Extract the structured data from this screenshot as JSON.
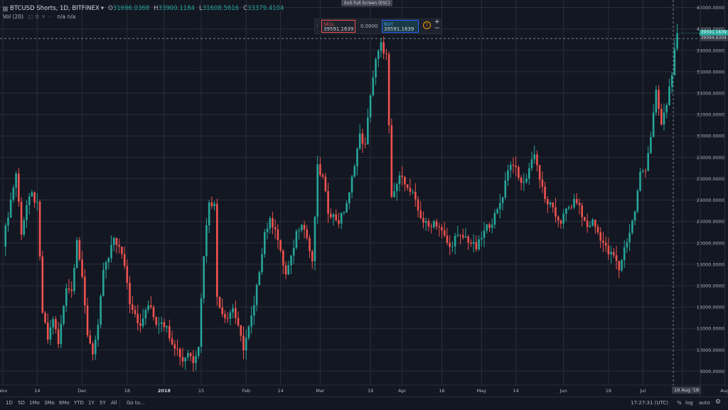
{
  "header": {
    "symbol": "BTCUSD Shorts, 1D, BITFINEX",
    "dropdown": "▾",
    "o_label": "O",
    "o_value": "31696.0368",
    "h_label": "H",
    "h_value": "33900.1184",
    "l_label": "L",
    "l_value": "31608.5616",
    "c_label": "C",
    "c_value": "33379.4104",
    "vol_label": "Vol (20)",
    "vol_values": "n/a  n/a"
  },
  "exit_fullscreen": "Exit Full Screen (ESC)",
  "trade_panel": {
    "sell_label": "SELL",
    "sell_price": "39591.1639",
    "spread": "0.0000",
    "buy_label": "BUY",
    "buy_price": "39591.1639",
    "info_icon": "!",
    "plus": "+",
    "minus": "−"
  },
  "price_tags": {
    "last": "39591.1639",
    "crosshair": "39094.6304"
  },
  "crosshair_date": "19 Aug '18",
  "bottom_bar": {
    "ranges": [
      "1D",
      "5D",
      "1Mo",
      "3Mo",
      "6Mo",
      "YTD",
      "1Y",
      "5Y",
      "All"
    ],
    "goto": "Go to...",
    "time": "17:27:31 (UTC)",
    "percent": "%",
    "log": "log",
    "auto": "auto"
  },
  "colors": {
    "up": "#26a69a",
    "down": "#ef5350",
    "background": "#131722",
    "grid": "#2a2e39",
    "text": "#b2b5be"
  },
  "chart_data": {
    "type": "candlestick",
    "title": "BTCUSD Shorts, 1D, BITFINEX",
    "ylim": [
      6700,
      42700
    ],
    "y_ticks": [
      8000,
      10000,
      12000,
      14000,
      16000,
      18000,
      20000,
      22000,
      24000,
      26000,
      28000,
      30000,
      32000,
      34000,
      36000,
      38000,
      40000,
      42000
    ],
    "y_tick_labels": [
      "8000.0000",
      "10000.0000",
      "12000.0000",
      "14000.0000",
      "16000.0000",
      "18000.0000",
      "20000.0000",
      "22000.0000",
      "24000.0000",
      "26000.0000",
      "28000.0000",
      "30000.0000",
      "32000.0000",
      "34000.0000",
      "36000.0000",
      "38000.0000",
      "40000.0000",
      "42000.0000"
    ],
    "x_tick_labels": [
      "Nov",
      "14",
      "Dec",
      "18",
      "2018",
      "15",
      "Feb",
      "14",
      "Mar",
      "19",
      "Apr",
      "16",
      "May",
      "14",
      "Jun",
      "18",
      "Jul",
      "16",
      "Aug"
    ],
    "x_tick_days": [
      0,
      13,
      30,
      47,
      61,
      75,
      92,
      105,
      120,
      139,
      151,
      166,
      181,
      194,
      212,
      229,
      242,
      257,
      273
    ],
    "start_date": "2017-10-25",
    "grid": true,
    "close_path": [
      [
        0,
        20000
      ],
      [
        3,
        24000
      ],
      [
        5,
        26500
      ],
      [
        7,
        21000
      ],
      [
        9,
        23500
      ],
      [
        11,
        24500
      ],
      [
        13,
        23500
      ],
      [
        15,
        13500
      ],
      [
        17,
        11000
      ],
      [
        19,
        13000
      ],
      [
        21,
        10500
      ],
      [
        24,
        16000
      ],
      [
        26,
        15500
      ],
      [
        28,
        20500
      ],
      [
        30,
        16500
      ],
      [
        32,
        11500
      ],
      [
        34,
        9800
      ],
      [
        36,
        12000
      ],
      [
        38,
        17500
      ],
      [
        40,
        18500
      ],
      [
        42,
        20500
      ],
      [
        44,
        19500
      ],
      [
        46,
        18000
      ],
      [
        48,
        14500
      ],
      [
        50,
        13500
      ],
      [
        52,
        12000
      ],
      [
        54,
        13800
      ],
      [
        56,
        14000
      ],
      [
        58,
        12500
      ],
      [
        60,
        12800
      ],
      [
        62,
        12000
      ],
      [
        64,
        10800
      ],
      [
        66,
        10000
      ],
      [
        68,
        9000
      ],
      [
        70,
        9800
      ],
      [
        72,
        9000
      ],
      [
        74,
        10500
      ],
      [
        76,
        19000
      ],
      [
        78,
        24000
      ],
      [
        80,
        23500
      ],
      [
        81,
        15000
      ],
      [
        83,
        13500
      ],
      [
        85,
        13000
      ],
      [
        87,
        14000
      ],
      [
        89,
        12000
      ],
      [
        91,
        10200
      ],
      [
        93,
        12000
      ],
      [
        95,
        14000
      ],
      [
        97,
        17500
      ],
      [
        99,
        21000
      ],
      [
        101,
        22000
      ],
      [
        103,
        21500
      ],
      [
        105,
        19000
      ],
      [
        107,
        17000
      ],
      [
        109,
        18500
      ],
      [
        111,
        21000
      ],
      [
        113,
        22000
      ],
      [
        115,
        20500
      ],
      [
        117,
        18000
      ],
      [
        119,
        27000
      ],
      [
        121,
        26000
      ],
      [
        123,
        23000
      ],
      [
        125,
        22500
      ],
      [
        127,
        22000
      ],
      [
        129,
        23000
      ],
      [
        131,
        24500
      ],
      [
        133,
        27500
      ],
      [
        135,
        30000
      ],
      [
        137,
        29000
      ],
      [
        139,
        34000
      ],
      [
        141,
        37000
      ],
      [
        143,
        38500
      ],
      [
        145,
        37500
      ],
      [
        147,
        24000
      ],
      [
        149,
        25500
      ],
      [
        151,
        26500
      ],
      [
        153,
        25000
      ],
      [
        155,
        24500
      ],
      [
        157,
        23000
      ],
      [
        159,
        22000
      ],
      [
        161,
        21500
      ],
      [
        163,
        22000
      ],
      [
        165,
        21500
      ],
      [
        167,
        20500
      ],
      [
        169,
        19500
      ],
      [
        171,
        20500
      ],
      [
        173,
        20500
      ],
      [
        175,
        20500
      ],
      [
        177,
        20000
      ],
      [
        179,
        19500
      ],
      [
        181,
        20500
      ],
      [
        183,
        21500
      ],
      [
        185,
        22000
      ],
      [
        187,
        23000
      ],
      [
        189,
        24500
      ],
      [
        191,
        27000
      ],
      [
        193,
        27500
      ],
      [
        195,
        26000
      ],
      [
        197,
        25500
      ],
      [
        199,
        27000
      ],
      [
        201,
        28500
      ],
      [
        203,
        26000
      ],
      [
        205,
        24000
      ],
      [
        207,
        23500
      ],
      [
        209,
        22500
      ],
      [
        211,
        22000
      ],
      [
        213,
        23000
      ],
      [
        215,
        23500
      ],
      [
        217,
        24000
      ],
      [
        219,
        22500
      ],
      [
        221,
        21500
      ],
      [
        223,
        22000
      ],
      [
        225,
        21000
      ],
      [
        227,
        20000
      ],
      [
        229,
        19000
      ],
      [
        231,
        18800
      ],
      [
        233,
        17500
      ],
      [
        235,
        19500
      ],
      [
        237,
        21000
      ],
      [
        239,
        23000
      ],
      [
        241,
        26500
      ],
      [
        243,
        27000
      ],
      [
        245,
        30000
      ],
      [
        247,
        34000
      ],
      [
        249,
        31000
      ],
      [
        251,
        33000
      ],
      [
        253,
        36000
      ],
      [
        255,
        39600
      ]
    ]
  }
}
